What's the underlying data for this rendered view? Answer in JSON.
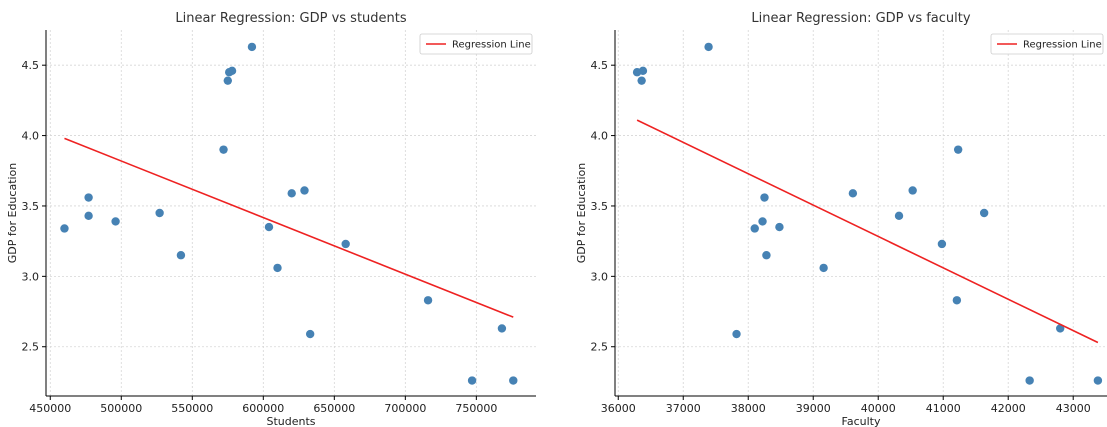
{
  "chart_data": [
    {
      "type": "scatter",
      "title": "Linear Regression: GDP vs students",
      "xlabel": "Students",
      "ylabel": "GDP for Education",
      "xlim": [
        447000,
        792000
      ],
      "ylim": [
        2.15,
        4.75
      ],
      "xticks": [
        450000,
        500000,
        550000,
        600000,
        650000,
        700000,
        750000
      ],
      "xtick_labels": [
        "450000",
        "500000",
        "550000",
        "600000",
        "650000",
        "700000",
        "750000"
      ],
      "yticks": [
        2.5,
        3.0,
        3.5,
        4.0,
        4.5
      ],
      "ytick_labels": [
        "2.5",
        "3.0",
        "3.5",
        "4.0",
        "4.5"
      ],
      "grid": true,
      "legend": {
        "position": "top-right",
        "entries": [
          "Regression Line"
        ]
      },
      "points": {
        "color": "#4682b4",
        "x": [
          592000,
          578000,
          576000,
          575000,
          572000,
          460000,
          477000,
          477000,
          496000,
          527000,
          542000,
          604000,
          610000,
          620000,
          629000,
          633000,
          658000,
          716000,
          747000,
          768000,
          776000
        ],
        "y": [
          4.63,
          4.46,
          4.45,
          4.39,
          3.9,
          3.34,
          3.56,
          3.43,
          3.39,
          3.45,
          3.15,
          3.35,
          3.06,
          3.59,
          3.61,
          2.59,
          3.23,
          2.83,
          2.26,
          2.63,
          2.26
        ]
      },
      "regression_line": {
        "name": "Regression Line",
        "color": "#ee2222",
        "x": [
          460000,
          776000
        ],
        "y": [
          3.98,
          2.71
        ]
      }
    },
    {
      "type": "scatter",
      "title": "Linear Regression: GDP vs faculty",
      "xlabel": "Faculty",
      "ylabel": "GDP for Education",
      "xlim": [
        35950,
        43520
      ],
      "ylim": [
        2.15,
        4.75
      ],
      "xticks": [
        36000,
        37000,
        38000,
        39000,
        40000,
        41000,
        42000,
        43000
      ],
      "xtick_labels": [
        "36000",
        "37000",
        "38000",
        "39000",
        "40000",
        "41000",
        "42000",
        "43000"
      ],
      "yticks": [
        2.5,
        3.0,
        3.5,
        4.0,
        4.5
      ],
      "ytick_labels": [
        "2.5",
        "3.0",
        "3.5",
        "4.0",
        "4.5"
      ],
      "grid": true,
      "legend": {
        "position": "top-right",
        "entries": [
          "Regression Line"
        ]
      },
      "points": {
        "color": "#4682b4",
        "x": [
          37390,
          36380,
          36290,
          36360,
          41230,
          38100,
          38250,
          40320,
          38220,
          41630,
          38280,
          38480,
          39160,
          39610,
          40530,
          37820,
          40980,
          41210,
          42330,
          42800,
          43380
        ],
        "y": [
          4.63,
          4.46,
          4.45,
          4.39,
          3.9,
          3.34,
          3.56,
          3.43,
          3.39,
          3.45,
          3.15,
          3.35,
          3.06,
          3.59,
          3.61,
          2.59,
          3.23,
          2.83,
          2.26,
          2.63,
          2.26
        ]
      },
      "regression_line": {
        "name": "Regression Line",
        "color": "#ee2222",
        "x": [
          36290,
          43380
        ],
        "y": [
          4.11,
          2.53
        ]
      }
    }
  ]
}
